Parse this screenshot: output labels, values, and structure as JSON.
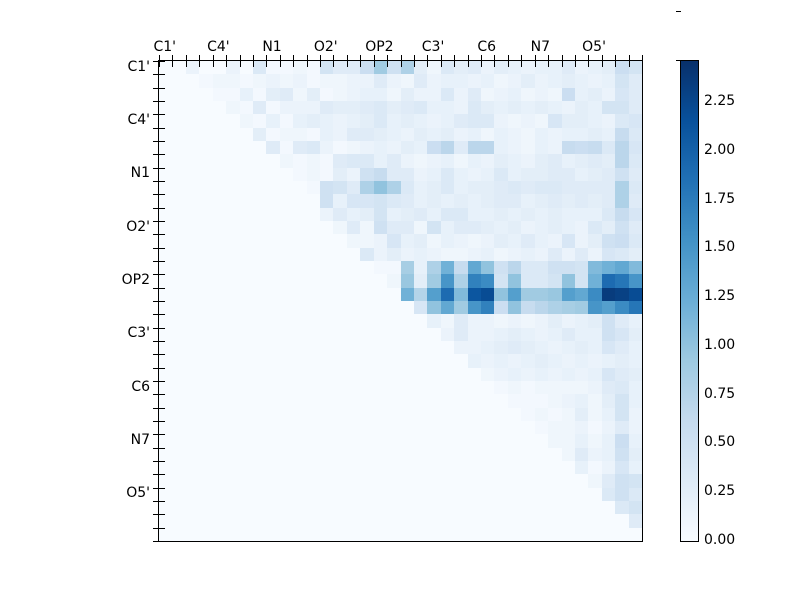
{
  "figure": {
    "background": "#ffffff",
    "axis_labels": [
      "C1'",
      "C4'",
      "N1",
      "O2'",
      "OP2",
      "C3'",
      "C6",
      "N7",
      "O5'"
    ],
    "label_every": 4
  },
  "colorbar": {
    "vmin": 0.0,
    "vmax": 2.46,
    "tick_labels": [
      "0.00",
      "0.25",
      "0.50",
      "0.75",
      "1.00",
      "1.25",
      "1.50",
      "1.75",
      "2.00",
      "2.25"
    ],
    "tick_values": [
      0.0,
      0.25,
      0.5,
      0.75,
      1.0,
      1.25,
      1.5,
      1.75,
      2.0,
      2.25
    ],
    "colormap": "Blues",
    "stops": [
      {
        "p": 0.0,
        "c": "#f7fbff"
      },
      {
        "p": 0.125,
        "c": "#deebf7"
      },
      {
        "p": 0.25,
        "c": "#c6dbef"
      },
      {
        "p": 0.375,
        "c": "#9ecae1"
      },
      {
        "p": 0.5,
        "c": "#6baed6"
      },
      {
        "p": 0.625,
        "c": "#4292c6"
      },
      {
        "p": 0.75,
        "c": "#2171b5"
      },
      {
        "p": 0.875,
        "c": "#08519c"
      },
      {
        "p": 1.0,
        "c": "#08306b"
      }
    ]
  },
  "chart_data": {
    "type": "heatmap",
    "title": "",
    "xlabel": "",
    "ylabel": "",
    "n": 36,
    "x_tick_labels": [
      "C1'",
      "C4'",
      "N1",
      "O2'",
      "OP2",
      "C3'",
      "C6",
      "N7",
      "O5'"
    ],
    "y_tick_labels": [
      "C1'",
      "C4'",
      "N1",
      "O2'",
      "OP2",
      "C3'",
      "C6",
      "N7",
      "O5'"
    ],
    "legend": "none",
    "grid": false,
    "value_range": [
      0.0,
      2.46
    ],
    "values": [
      [
        0,
        0,
        0.15,
        0,
        0,
        0.15,
        0,
        0.35,
        0.05,
        0.05,
        0.1,
        0.05,
        0.45,
        0.3,
        0.3,
        0.55,
        0.9,
        0.5,
        0.8,
        0.25,
        0.1,
        0.35,
        0.25,
        0.3,
        0.15,
        0.25,
        0.2,
        0.15,
        0.2,
        0.2,
        0.3,
        0.15,
        0.2,
        0.25,
        0.55,
        0.45
      ],
      [
        0,
        0,
        0,
        0.05,
        0.1,
        0.1,
        0.05,
        0.1,
        0.15,
        0.1,
        0.15,
        0.05,
        0.1,
        0.1,
        0.15,
        0.15,
        0.3,
        0.15,
        0.1,
        0.3,
        0.15,
        0.2,
        0.2,
        0.15,
        0.2,
        0.1,
        0.15,
        0.25,
        0.15,
        0.2,
        0.25,
        0.2,
        0.15,
        0.2,
        0.45,
        0.3
      ],
      [
        0,
        0,
        0,
        0,
        0.05,
        0.05,
        0.2,
        0.05,
        0.25,
        0.3,
        0.1,
        0.25,
        0.05,
        0.1,
        0.15,
        0.2,
        0.2,
        0.1,
        0.25,
        0.15,
        0.15,
        0.35,
        0.15,
        0.3,
        0.1,
        0.15,
        0.2,
        0.1,
        0.15,
        0.1,
        0.55,
        0.2,
        0.25,
        0.15,
        0.4,
        0.3
      ],
      [
        0,
        0,
        0,
        0,
        0,
        0.1,
        0.05,
        0.3,
        0.05,
        0.15,
        0.15,
        0.15,
        0.3,
        0.25,
        0.25,
        0.3,
        0.35,
        0.25,
        0.3,
        0.35,
        0.2,
        0.2,
        0.15,
        0.35,
        0.25,
        0.2,
        0.25,
        0.2,
        0.25,
        0.2,
        0.15,
        0.25,
        0.2,
        0.45,
        0.45,
        0.3
      ],
      [
        0,
        0,
        0,
        0,
        0,
        0,
        0.1,
        0.05,
        0.2,
        0.05,
        0.2,
        0.25,
        0.2,
        0.15,
        0.2,
        0.25,
        0.35,
        0.2,
        0.25,
        0.2,
        0.15,
        0.2,
        0.3,
        0.35,
        0.35,
        0.15,
        0.1,
        0.15,
        0.1,
        0.4,
        0.25,
        0.25,
        0.2,
        0.15,
        0.35,
        0.4
      ],
      [
        0,
        0,
        0,
        0,
        0,
        0,
        0,
        0.25,
        0.05,
        0.1,
        0.1,
        0.05,
        0.2,
        0.15,
        0.3,
        0.3,
        0.25,
        0.2,
        0.15,
        0.25,
        0.2,
        0.25,
        0.15,
        0.2,
        0.1,
        0.2,
        0.15,
        0.1,
        0.2,
        0.15,
        0.2,
        0.2,
        0.25,
        0.2,
        0.6,
        0.35
      ],
      [
        0,
        0,
        0,
        0,
        0,
        0,
        0,
        0,
        0.3,
        0.05,
        0.3,
        0.35,
        0.15,
        0.05,
        0.1,
        0.15,
        0.2,
        0.15,
        0.25,
        0.2,
        0.55,
        0.7,
        0.3,
        0.7,
        0.7,
        0.2,
        0.15,
        0.1,
        0.2,
        0.15,
        0.6,
        0.55,
        0.6,
        0.35,
        0.7,
        0.4
      ],
      [
        0,
        0,
        0,
        0,
        0,
        0,
        0,
        0,
        0,
        0.1,
        0.05,
        0.1,
        0.05,
        0.3,
        0.35,
        0.35,
        0.2,
        0.3,
        0.15,
        0.1,
        0.15,
        0.2,
        0.1,
        0.2,
        0.15,
        0.25,
        0.2,
        0.15,
        0.25,
        0.3,
        0.2,
        0.25,
        0.3,
        0.25,
        0.7,
        0.35
      ],
      [
        0,
        0,
        0,
        0,
        0,
        0,
        0,
        0,
        0,
        0,
        0.05,
        0.1,
        0.05,
        0.25,
        0.15,
        0.5,
        0.6,
        0.3,
        0.3,
        0.15,
        0.2,
        0.35,
        0.2,
        0.15,
        0.2,
        0.35,
        0.2,
        0.25,
        0.25,
        0.3,
        0.3,
        0.2,
        0.25,
        0.3,
        0.5,
        0.3
      ],
      [
        0,
        0,
        0,
        0,
        0,
        0,
        0,
        0,
        0,
        0,
        0,
        0.05,
        0.5,
        0.45,
        0.3,
        0.8,
        1.0,
        0.8,
        0.35,
        0.2,
        0.25,
        0.35,
        0.2,
        0.25,
        0.25,
        0.3,
        0.35,
        0.3,
        0.35,
        0.35,
        0.3,
        0.3,
        0.3,
        0.3,
        0.8,
        0.35
      ],
      [
        0,
        0,
        0,
        0,
        0,
        0,
        0,
        0,
        0,
        0,
        0,
        0,
        0.5,
        0.2,
        0.4,
        0.4,
        0.45,
        0.35,
        0.3,
        0.2,
        0.25,
        0.2,
        0.25,
        0.2,
        0.25,
        0.3,
        0.3,
        0.2,
        0.25,
        0.3,
        0.25,
        0.3,
        0.25,
        0.3,
        0.8,
        0.3
      ],
      [
        0,
        0,
        0,
        0,
        0,
        0,
        0,
        0,
        0,
        0,
        0,
        0,
        0.15,
        0.3,
        0.2,
        0.25,
        0.45,
        0.2,
        0.25,
        0.3,
        0.2,
        0.35,
        0.35,
        0.2,
        0.2,
        0.25,
        0.2,
        0.25,
        0.2,
        0.25,
        0.2,
        0.2,
        0.2,
        0.35,
        0.6,
        0.4
      ],
      [
        0,
        0,
        0,
        0,
        0,
        0,
        0,
        0,
        0,
        0,
        0,
        0,
        0,
        0.1,
        0.3,
        0.1,
        0.5,
        0.3,
        0.3,
        0.1,
        0.45,
        0.2,
        0.3,
        0.3,
        0.25,
        0.2,
        0.25,
        0.15,
        0.2,
        0.25,
        0.2,
        0.15,
        0.35,
        0.25,
        0.5,
        0.3
      ],
      [
        0,
        0,
        0,
        0,
        0,
        0,
        0,
        0,
        0,
        0,
        0,
        0,
        0,
        0,
        0.1,
        0.1,
        0.15,
        0.4,
        0.2,
        0.25,
        0.1,
        0.2,
        0.15,
        0.1,
        0.15,
        0.25,
        0.2,
        0.3,
        0.2,
        0.15,
        0.4,
        0.15,
        0.25,
        0.5,
        0.55,
        0.35
      ],
      [
        0,
        0,
        0,
        0,
        0,
        0,
        0,
        0,
        0,
        0,
        0,
        0,
        0,
        0,
        0,
        0.35,
        0.15,
        0.25,
        0.15,
        0.2,
        0.15,
        0.1,
        0.1,
        0.15,
        0.2,
        0.1,
        0.15,
        0.2,
        0.15,
        0.3,
        0.15,
        0.3,
        0.15,
        0.4,
        0.35,
        0.25
      ],
      [
        0,
        0,
        0,
        0,
        0,
        0,
        0,
        0,
        0,
        0,
        0,
        0,
        0,
        0,
        0,
        0,
        0.05,
        0.05,
        0.85,
        0.2,
        0.8,
        1.2,
        0.6,
        1.3,
        1.0,
        0.5,
        0.7,
        0.35,
        0.35,
        0.5,
        0.5,
        0.45,
        1.1,
        1.2,
        1.3,
        1.1
      ],
      [
        0,
        0,
        0,
        0,
        0,
        0,
        0,
        0,
        0,
        0,
        0,
        0,
        0,
        0,
        0,
        0,
        0,
        0.1,
        0.95,
        0.25,
        0.9,
        1.5,
        0.8,
        1.7,
        1.6,
        0.45,
        1.0,
        0.35,
        0.35,
        0.45,
        1.0,
        0.45,
        1.2,
        1.9,
        1.8,
        1.5
      ],
      [
        0,
        0,
        0,
        0,
        0,
        0,
        0,
        0,
        0,
        0,
        0,
        0,
        0,
        0,
        0,
        0,
        0,
        0,
        1.2,
        0.75,
        1.4,
        1.9,
        1.1,
        2.1,
        2.2,
        1.0,
        1.4,
        0.9,
        0.9,
        0.95,
        1.4,
        1.3,
        1.6,
        2.35,
        2.3,
        2.2
      ],
      [
        0,
        0,
        0,
        0,
        0,
        0,
        0,
        0,
        0,
        0,
        0,
        0,
        0,
        0,
        0,
        0,
        0,
        0,
        0,
        0.4,
        1.0,
        1.3,
        0.9,
        1.5,
        1.7,
        0.55,
        1.0,
        0.6,
        0.7,
        0.8,
        0.85,
        0.9,
        1.5,
        1.4,
        1.6,
        1.8
      ],
      [
        0,
        0,
        0,
        0,
        0,
        0,
        0,
        0,
        0,
        0,
        0,
        0,
        0,
        0,
        0,
        0,
        0,
        0,
        0,
        0,
        0.2,
        0.1,
        0.3,
        0.15,
        0.15,
        0.1,
        0.15,
        0.1,
        0.15,
        0.25,
        0.15,
        0.2,
        0.25,
        0.5,
        0.3,
        0.2
      ],
      [
        0,
        0,
        0,
        0,
        0,
        0,
        0,
        0,
        0,
        0,
        0,
        0,
        0,
        0,
        0,
        0,
        0,
        0,
        0,
        0,
        0,
        0.15,
        0.3,
        0.15,
        0.15,
        0.2,
        0.25,
        0.2,
        0.15,
        0.2,
        0.3,
        0.2,
        0.2,
        0.5,
        0.4,
        0.25
      ],
      [
        0,
        0,
        0,
        0,
        0,
        0,
        0,
        0,
        0,
        0,
        0,
        0,
        0,
        0,
        0,
        0,
        0,
        0,
        0,
        0,
        0,
        0,
        0.15,
        0.15,
        0.2,
        0.25,
        0.3,
        0.25,
        0.2,
        0.15,
        0.2,
        0.25,
        0.2,
        0.4,
        0.3,
        0.2
      ],
      [
        0,
        0,
        0,
        0,
        0,
        0,
        0,
        0,
        0,
        0,
        0,
        0,
        0,
        0,
        0,
        0,
        0,
        0,
        0,
        0,
        0,
        0,
        0,
        0.2,
        0.15,
        0.2,
        0.15,
        0.2,
        0.25,
        0.2,
        0.15,
        0.2,
        0.15,
        0.2,
        0.25,
        0.2
      ],
      [
        0,
        0,
        0,
        0,
        0,
        0,
        0,
        0,
        0,
        0,
        0,
        0,
        0,
        0,
        0,
        0,
        0,
        0,
        0,
        0,
        0,
        0,
        0,
        0,
        0.1,
        0.15,
        0.2,
        0.15,
        0.2,
        0.15,
        0.2,
        0.15,
        0.2,
        0.4,
        0.3,
        0.25
      ],
      [
        0,
        0,
        0,
        0,
        0,
        0,
        0,
        0,
        0,
        0,
        0,
        0,
        0,
        0,
        0,
        0,
        0,
        0,
        0,
        0,
        0,
        0,
        0,
        0,
        0,
        0.05,
        0.1,
        0.05,
        0.1,
        0.1,
        0.1,
        0.1,
        0.15,
        0.3,
        0.35,
        0.2
      ],
      [
        0,
        0,
        0,
        0,
        0,
        0,
        0,
        0,
        0,
        0,
        0,
        0,
        0,
        0,
        0,
        0,
        0,
        0,
        0,
        0,
        0,
        0,
        0,
        0,
        0,
        0,
        0.05,
        0.05,
        0.05,
        0.1,
        0.15,
        0.2,
        0.1,
        0.25,
        0.45,
        0.2
      ],
      [
        0,
        0,
        0,
        0,
        0,
        0,
        0,
        0,
        0,
        0,
        0,
        0,
        0,
        0,
        0,
        0,
        0,
        0,
        0,
        0,
        0,
        0,
        0,
        0,
        0,
        0,
        0,
        0.05,
        0.1,
        0.05,
        0.1,
        0.25,
        0.1,
        0.2,
        0.45,
        0.15
      ],
      [
        0,
        0,
        0,
        0,
        0,
        0,
        0,
        0,
        0,
        0,
        0,
        0,
        0,
        0,
        0,
        0,
        0,
        0,
        0,
        0,
        0,
        0,
        0,
        0,
        0,
        0,
        0,
        0,
        0.05,
        0.1,
        0.1,
        0.15,
        0.05,
        0.15,
        0.3,
        0.15
      ],
      [
        0,
        0,
        0,
        0,
        0,
        0,
        0,
        0,
        0,
        0,
        0,
        0,
        0,
        0,
        0,
        0,
        0,
        0,
        0,
        0,
        0,
        0,
        0,
        0,
        0,
        0,
        0,
        0,
        0,
        0.1,
        0.1,
        0.2,
        0.1,
        0.2,
        0.55,
        0.2
      ],
      [
        0,
        0,
        0,
        0,
        0,
        0,
        0,
        0,
        0,
        0,
        0,
        0,
        0,
        0,
        0,
        0,
        0,
        0,
        0,
        0,
        0,
        0,
        0,
        0,
        0,
        0,
        0,
        0,
        0,
        0,
        0.1,
        0.3,
        0.15,
        0.2,
        0.5,
        0.25
      ],
      [
        0,
        0,
        0,
        0,
        0,
        0,
        0,
        0,
        0,
        0,
        0,
        0,
        0,
        0,
        0,
        0,
        0,
        0,
        0,
        0,
        0,
        0,
        0,
        0,
        0,
        0,
        0,
        0,
        0,
        0,
        0,
        0.2,
        0.05,
        0.15,
        0.4,
        0.2
      ],
      [
        0,
        0,
        0,
        0,
        0,
        0,
        0,
        0,
        0,
        0,
        0,
        0,
        0,
        0,
        0,
        0,
        0,
        0,
        0,
        0,
        0,
        0,
        0,
        0,
        0,
        0,
        0,
        0,
        0,
        0,
        0,
        0,
        0.1,
        0.3,
        0.5,
        0.45
      ],
      [
        0,
        0,
        0,
        0,
        0,
        0,
        0,
        0,
        0,
        0,
        0,
        0,
        0,
        0,
        0,
        0,
        0,
        0,
        0,
        0,
        0,
        0,
        0,
        0,
        0,
        0,
        0,
        0,
        0,
        0,
        0,
        0,
        0,
        0.35,
        0.5,
        0.35
      ],
      [
        0,
        0,
        0,
        0,
        0,
        0,
        0,
        0,
        0,
        0,
        0,
        0,
        0,
        0,
        0,
        0,
        0,
        0,
        0,
        0,
        0,
        0,
        0,
        0,
        0,
        0,
        0,
        0,
        0,
        0,
        0,
        0,
        0,
        0,
        0.35,
        0.45
      ],
      [
        0,
        0,
        0,
        0,
        0,
        0,
        0,
        0,
        0,
        0,
        0,
        0,
        0,
        0,
        0,
        0,
        0,
        0,
        0,
        0,
        0,
        0,
        0,
        0,
        0,
        0,
        0,
        0,
        0,
        0,
        0,
        0,
        0,
        0,
        0,
        0.3
      ],
      [
        0,
        0,
        0,
        0,
        0,
        0,
        0,
        0,
        0,
        0,
        0,
        0,
        0,
        0,
        0,
        0,
        0,
        0,
        0,
        0,
        0,
        0,
        0,
        0,
        0,
        0,
        0,
        0,
        0,
        0,
        0,
        0,
        0,
        0,
        0,
        0
      ]
    ]
  }
}
